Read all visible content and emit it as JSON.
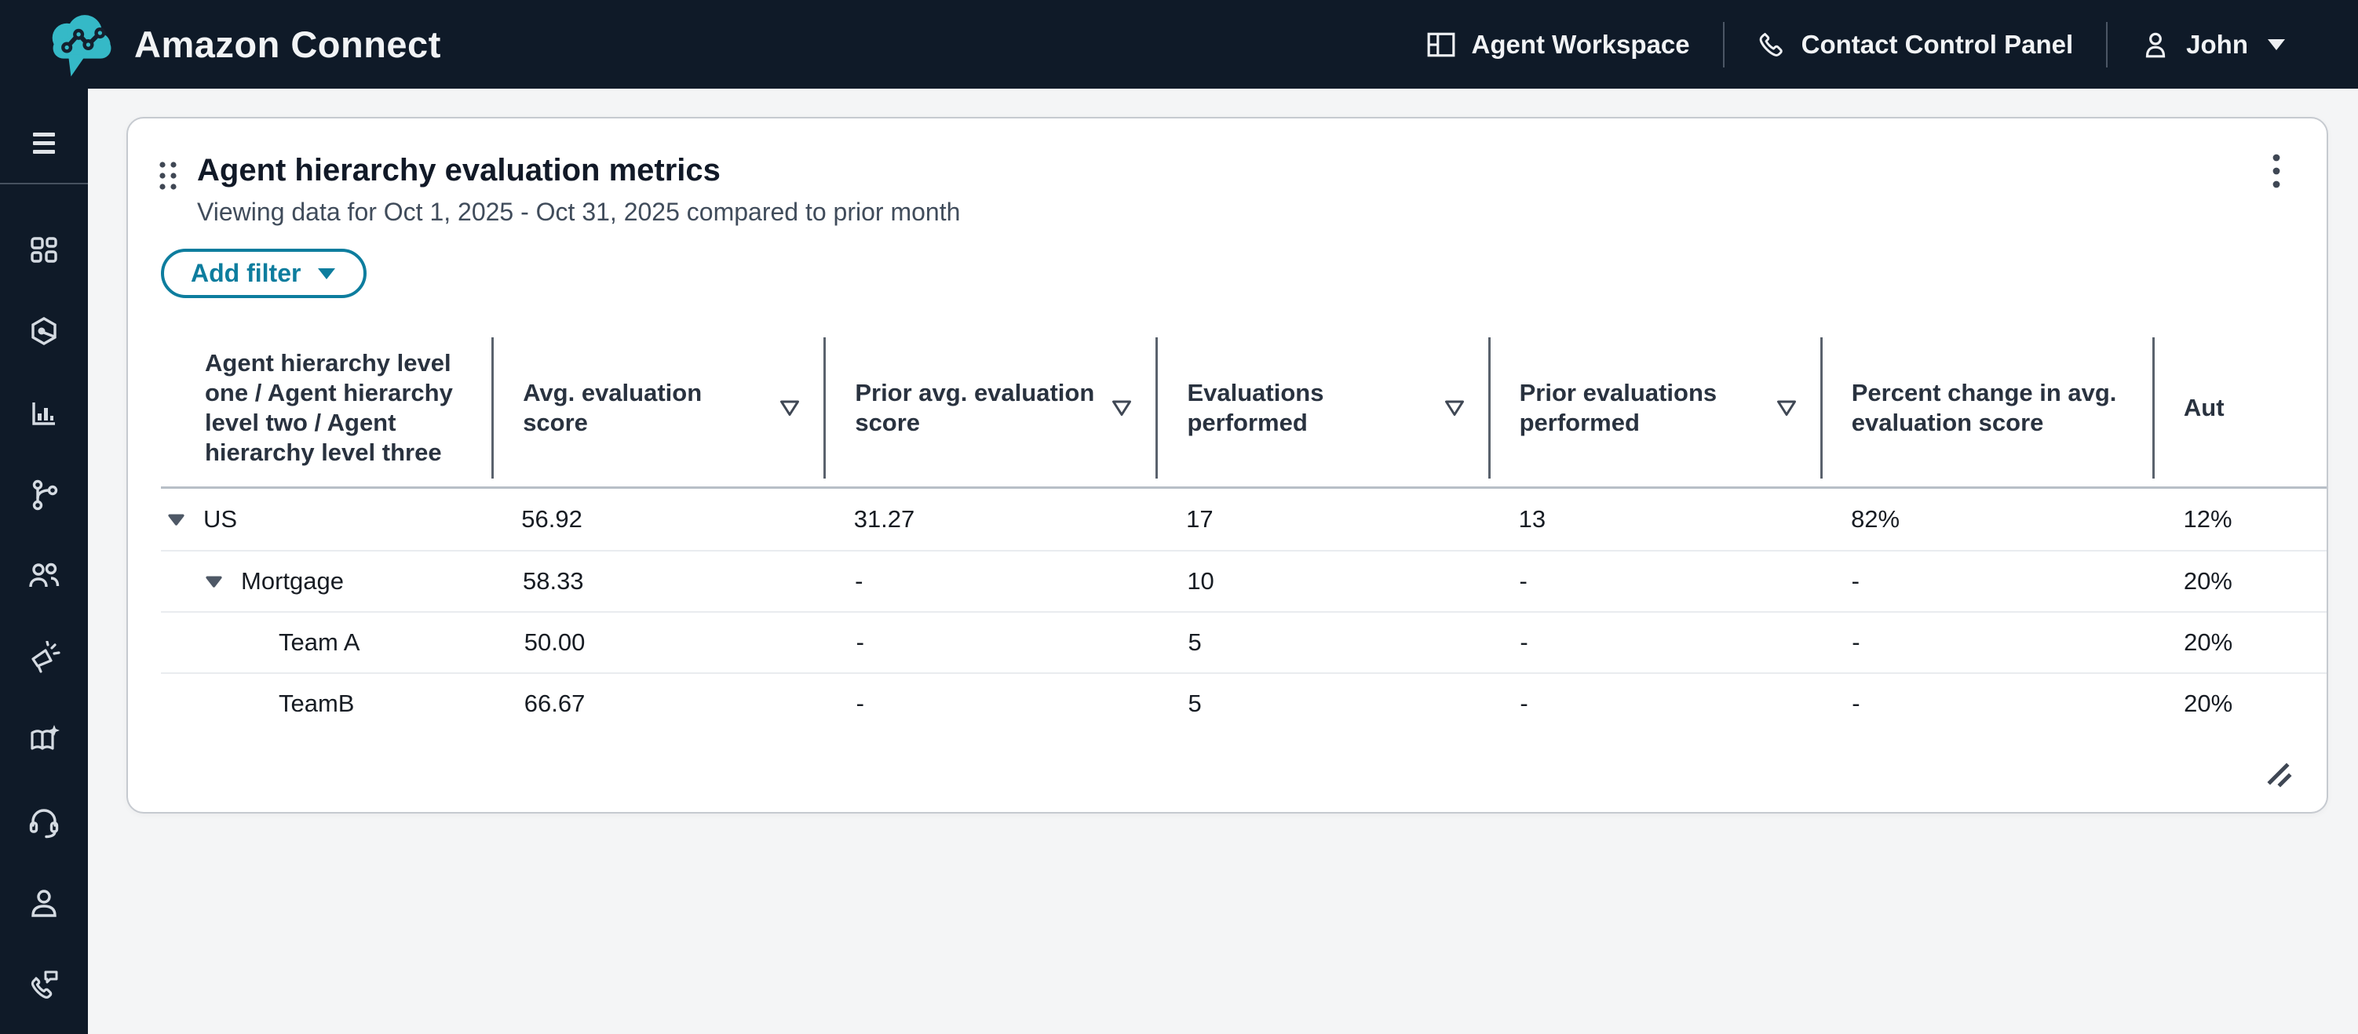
{
  "topbar": {
    "brand": "Amazon Connect",
    "logo_icon": "amazon-connect-cloud-logo",
    "nav": [
      {
        "label": "Agent Workspace",
        "icon": "workspace-layout-icon"
      },
      {
        "label": "Contact Control Panel",
        "icon": "phone-icon"
      },
      {
        "label": "John",
        "icon": "user-icon",
        "caret_icon": "caret-down-icon"
      }
    ]
  },
  "sidebar": {
    "menu_icon": "hamburger-menu-icon",
    "items": [
      {
        "icon": "dashboard-grid-icon"
      },
      {
        "icon": "hexagon-insights-icon"
      },
      {
        "icon": "bar-chart-icon"
      },
      {
        "icon": "flows-branch-icon"
      },
      {
        "icon": "users-icon"
      },
      {
        "icon": "megaphone-icon"
      },
      {
        "icon": "knowledge-book-icon"
      },
      {
        "icon": "headset-icon"
      },
      {
        "icon": "profile-person-icon"
      },
      {
        "icon": "phone-message-icon"
      }
    ]
  },
  "card": {
    "title": "Agent hierarchy evaluation metrics",
    "subtitle": "Viewing data for Oct 1, 2025 - Oct 31, 2025 compared to prior month",
    "drag_handle_icon": "drag-handle-dots-icon",
    "menu_icon": "kebab-menu-icon",
    "resize_icon": "resize-handle-icon",
    "add_filter": {
      "label": "Add filter",
      "caret_icon": "caret-down-icon"
    },
    "table": {
      "columns": [
        {
          "label": "Agent hierarchy level one / Agent hierarchy level two / Agent hierarchy level three",
          "sortable": false
        },
        {
          "label": "Avg. evaluation score",
          "sortable": true
        },
        {
          "label": "Prior avg. evaluation score",
          "sortable": true
        },
        {
          "label": "Evaluations performed",
          "sortable": true
        },
        {
          "label": "Prior evaluations performed",
          "sortable": true
        },
        {
          "label": "Percent change in avg. evaluation score",
          "sortable": false
        },
        {
          "label": "Aut",
          "sortable": false,
          "clipped": true
        }
      ],
      "rows": [
        {
          "name": "US",
          "level": 0,
          "expandable": true,
          "expanded": true,
          "values": [
            "56.92",
            "31.27",
            "17",
            "13",
            "82%",
            "12%"
          ]
        },
        {
          "name": "Mortgage",
          "level": 1,
          "expandable": true,
          "expanded": true,
          "values": [
            "58.33",
            "-",
            "10",
            "-",
            "-",
            "20%"
          ]
        },
        {
          "name": "Team A",
          "level": 2,
          "expandable": false,
          "expanded": null,
          "values": [
            "50.00",
            "-",
            "5",
            "-",
            "-",
            "20%"
          ]
        },
        {
          "name": "TeamB",
          "level": 2,
          "expandable": false,
          "expanded": null,
          "values": [
            "66.67",
            "-",
            "5",
            "-",
            "-",
            "20%"
          ]
        }
      ]
    }
  },
  "colors": {
    "topbar_bg": "#0f1a28",
    "accent_teal": "#0d7d9e",
    "logo_teal": "#35b9c7",
    "page_bg": "#f4f5f6",
    "header_divider": "#5a626d",
    "header_border": "#b8bfc7",
    "row_divider": "#e9ecef",
    "expand_arrow": "#4e5866"
  }
}
